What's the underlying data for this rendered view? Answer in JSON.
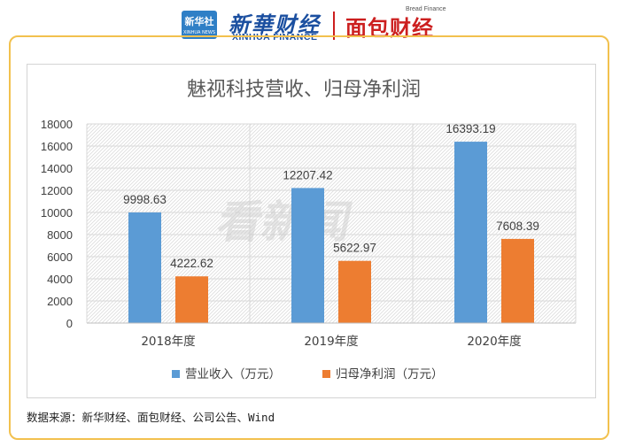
{
  "header": {
    "xinhua_badge": "新华社",
    "xinhua_badge_sub": "XINHUA NEWS",
    "xinhua_brand": "新華财经",
    "xinhua_brand_en": "XINHUA FINANCE",
    "bread_brand": "面包财经",
    "bread_brand_en": "Bread Finance"
  },
  "watermark": "看新闻",
  "source": "数据来源：新华财经、面包财经、公司公告、Wind",
  "colors": {
    "revenue": "#5b9bd5",
    "profit": "#ed7d31",
    "accent_border": "#f2c14e",
    "xinhua_blue": "#1b4fa0",
    "bread_red": "#cc1f1f"
  },
  "chart_data": {
    "type": "bar",
    "title": "魅视科技营收、归母净利润",
    "categories": [
      "2018年度",
      "2019年度",
      "2020年度"
    ],
    "series": [
      {
        "name": "营业收入（万元）",
        "values": [
          9998.63,
          12207.42,
          16393.19
        ],
        "labels": [
          "9998.63",
          "12207.42",
          "16393.19"
        ]
      },
      {
        "name": "归母净利润（万元）",
        "values": [
          4222.62,
          5622.97,
          7608.39
        ],
        "labels": [
          "4222.62",
          "5622.97",
          "7608.39"
        ]
      }
    ],
    "ylim": [
      0,
      18000
    ],
    "yticks": [
      0,
      2000,
      4000,
      6000,
      8000,
      10000,
      12000,
      14000,
      16000,
      18000
    ],
    "grid": true,
    "legend": "bottom"
  }
}
